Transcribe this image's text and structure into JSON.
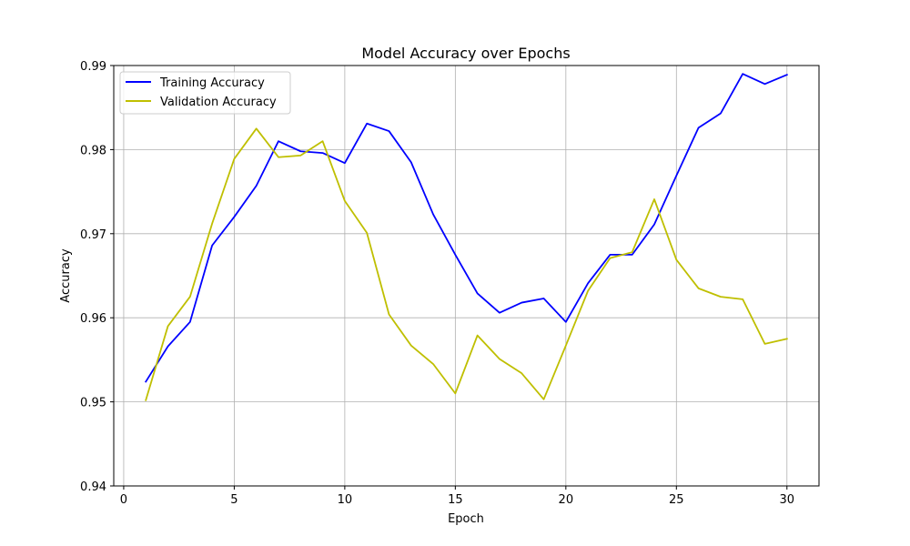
{
  "chart_data": {
    "type": "line",
    "title": "Model Accuracy over Epochs",
    "xlabel": "Epoch",
    "ylabel": "Accuracy",
    "xlim": [
      -0.45,
      31.45
    ],
    "ylim": [
      0.94,
      0.99
    ],
    "xticks": [
      0,
      5,
      10,
      15,
      20,
      25,
      30
    ],
    "yticks": [
      0.94,
      0.95,
      0.96,
      0.97,
      0.98,
      0.99
    ],
    "xtick_labels": [
      "0",
      "5",
      "10",
      "15",
      "20",
      "25",
      "30"
    ],
    "ytick_labels": [
      "0.94",
      "0.95",
      "0.96",
      "0.97",
      "0.98",
      "0.99"
    ],
    "grid": true,
    "legend_position": "top-left",
    "x": [
      1,
      2,
      3,
      4,
      5,
      6,
      7,
      8,
      9,
      10,
      11,
      12,
      13,
      14,
      15,
      16,
      17,
      18,
      19,
      20,
      21,
      22,
      23,
      24,
      25,
      26,
      27,
      28,
      29,
      30
    ],
    "series": [
      {
        "name": "Training Accuracy",
        "color": "#0000ff",
        "values": [
          0.9524,
          0.9566,
          0.9595,
          0.9686,
          0.972,
          0.9757,
          0.981,
          0.9798,
          0.9796,
          0.9784,
          0.9831,
          0.9822,
          0.9785,
          0.9723,
          0.9675,
          0.9629,
          0.9606,
          0.9618,
          0.9623,
          0.9595,
          0.9641,
          0.9675,
          0.9675,
          0.9711,
          0.9769,
          0.9826,
          0.9843,
          0.989,
          0.9878,
          0.9889
        ]
      },
      {
        "name": "Validation Accuracy",
        "color": "#bfbf00",
        "values": [
          0.9502,
          0.959,
          0.9625,
          0.9712,
          0.9789,
          0.9825,
          0.9791,
          0.9793,
          0.981,
          0.9739,
          0.9701,
          0.9604,
          0.9567,
          0.9545,
          0.951,
          0.9579,
          0.9551,
          0.9534,
          0.9503,
          0.9567,
          0.9632,
          0.9671,
          0.9678,
          0.9741,
          0.9669,
          0.9635,
          0.9625,
          0.9622,
          0.9569,
          0.9575
        ]
      }
    ]
  }
}
